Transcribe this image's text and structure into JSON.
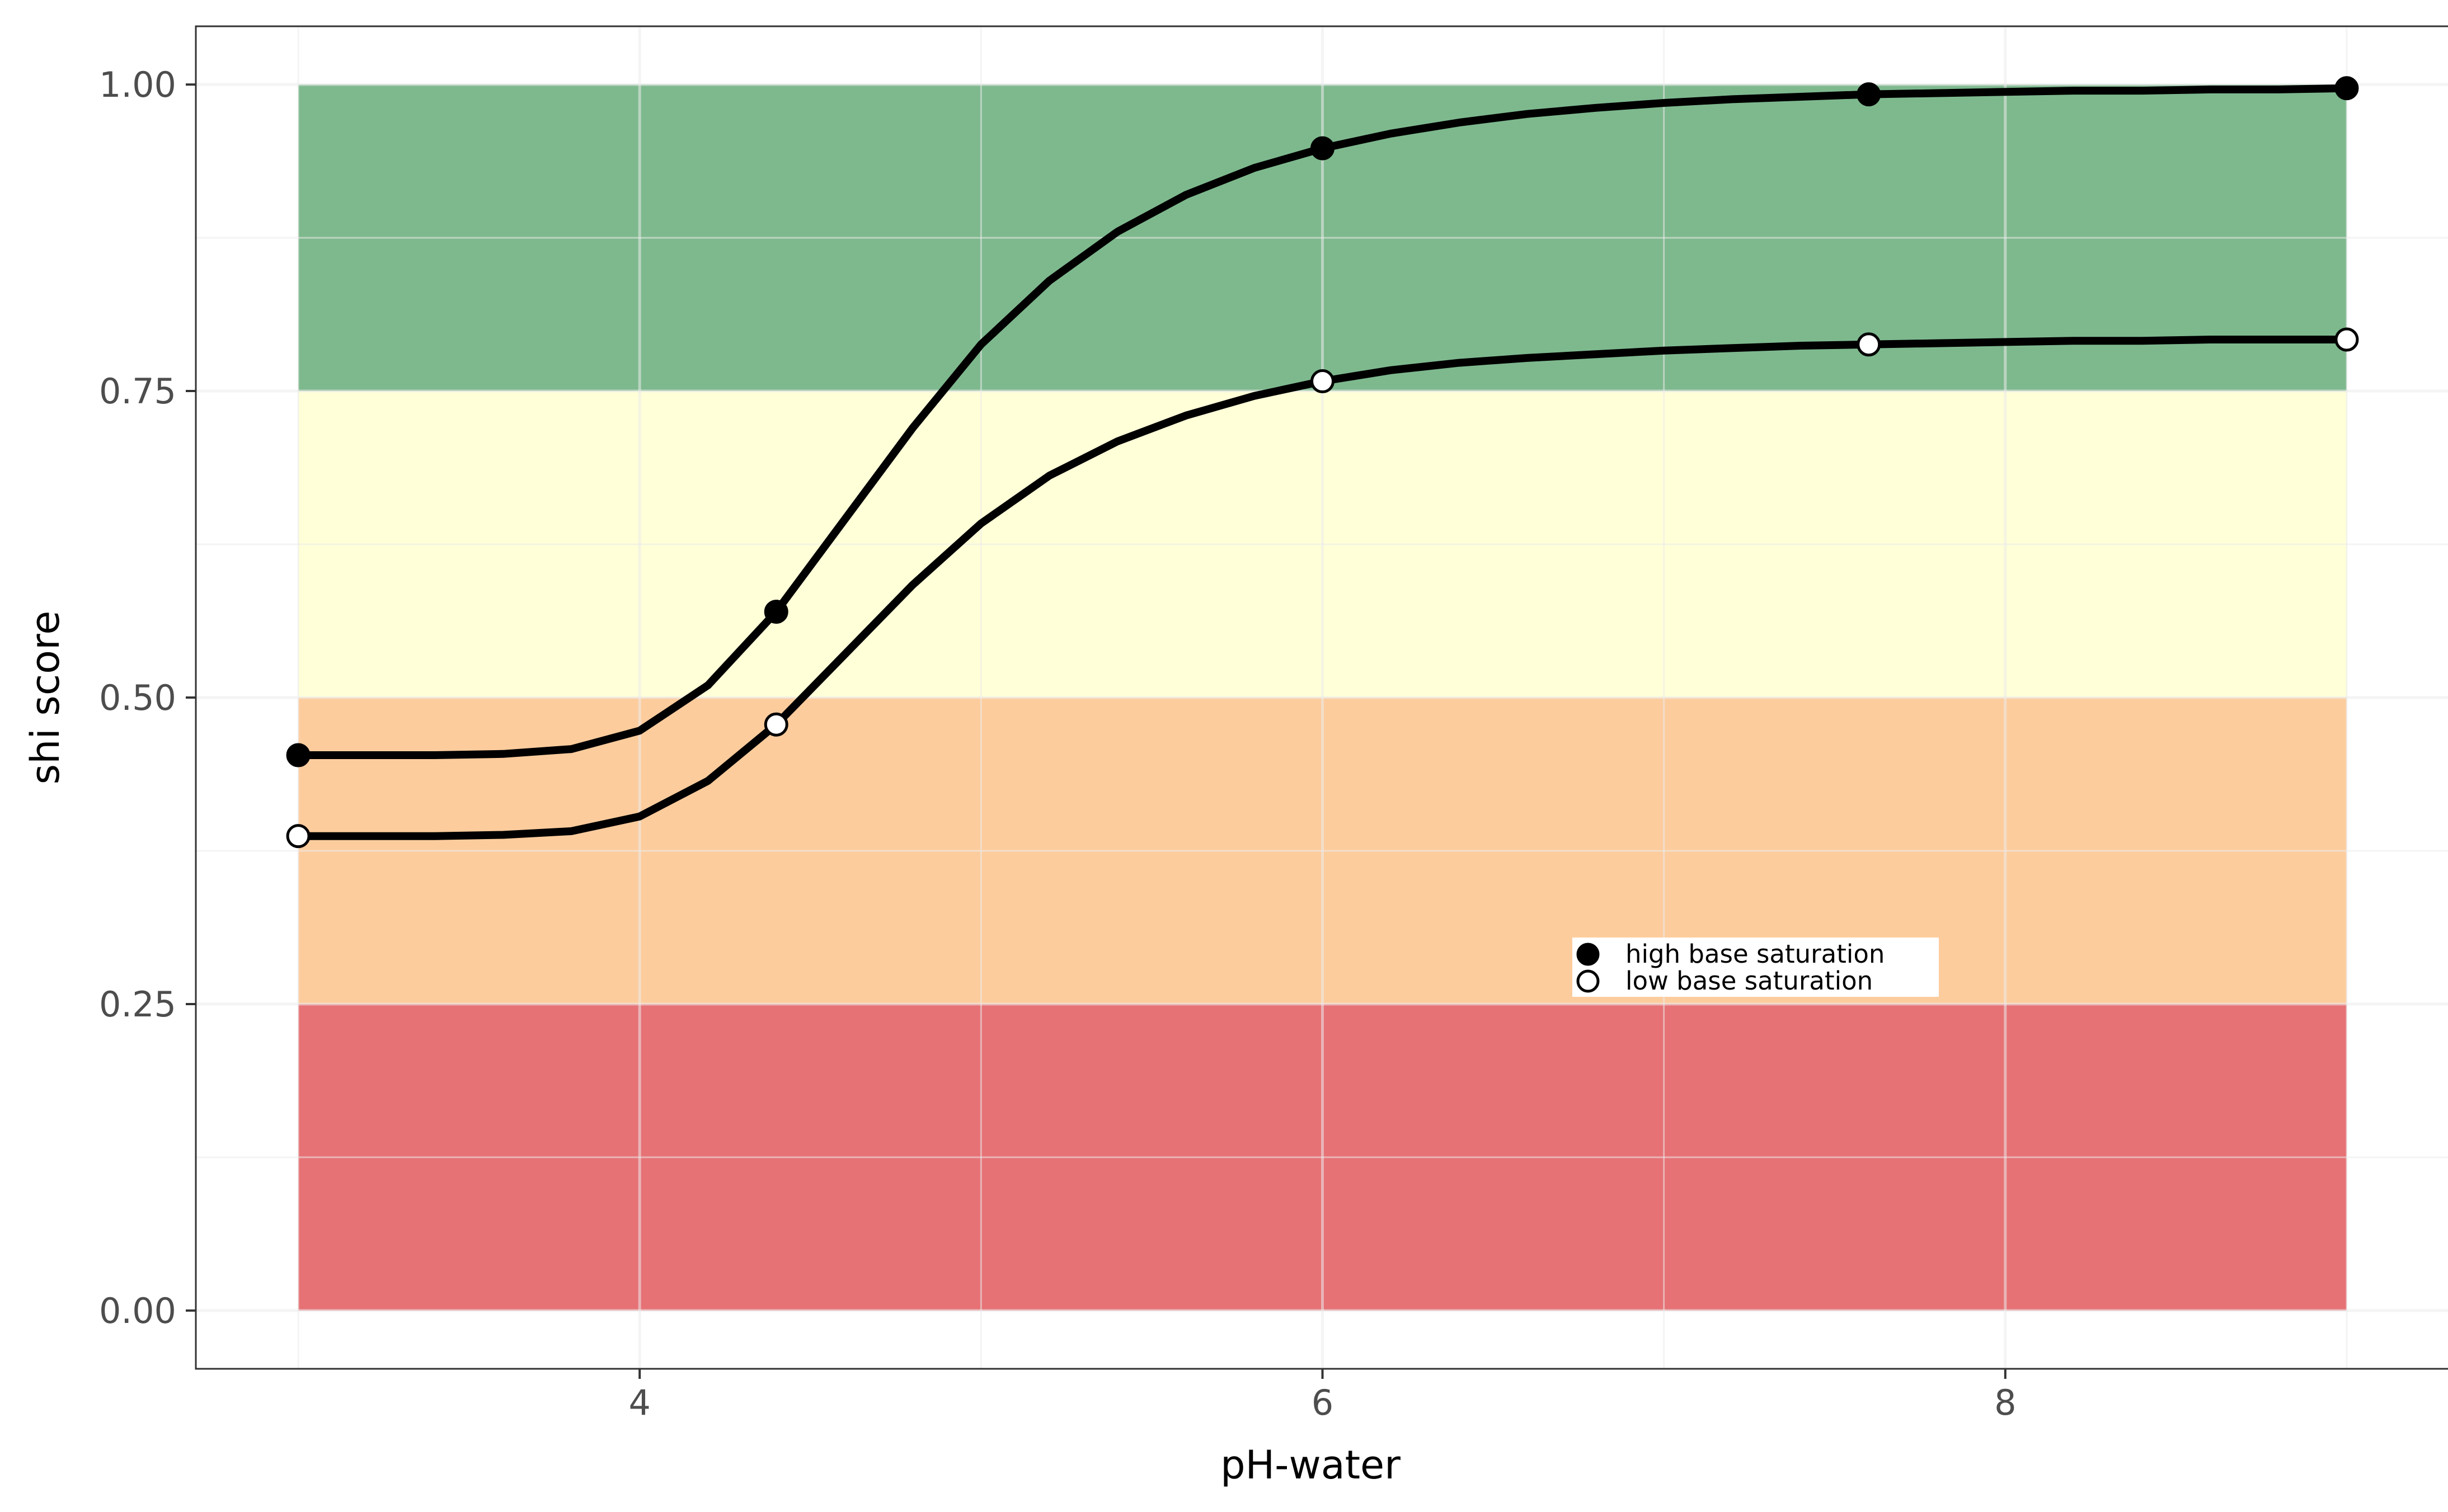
{
  "chart_data": {
    "type": "line",
    "xlabel": "pH-water",
    "ylabel": "shi score",
    "xlim": [
      2.7,
      9.3
    ],
    "ylim": [
      -0.0475,
      1.0475
    ],
    "x_ticks": [
      4,
      6,
      8
    ],
    "x_tick_labels": [
      "4",
      "6",
      "8"
    ],
    "x_minor": [
      3,
      5,
      7,
      9
    ],
    "y_ticks": [
      0,
      0.25,
      0.5,
      0.75,
      1.0
    ],
    "y_tick_labels": [
      "0.00",
      "0.25",
      "0.50",
      "0.75",
      "1.00"
    ],
    "y_minor": [
      0.125,
      0.375,
      0.625,
      0.875
    ],
    "grid": true,
    "bands": [
      {
        "ymin": 0.0,
        "ymax": 0.25,
        "color": "#e67275"
      },
      {
        "ymin": 0.25,
        "ymax": 0.5,
        "color": "#fdcc9d"
      },
      {
        "ymin": 0.5,
        "ymax": 0.75,
        "color": "#ffffd8"
      },
      {
        "ymin": 0.75,
        "ymax": 1.0,
        "color": "#7eb98e"
      }
    ],
    "band_x_range": [
      3.0,
      9.0
    ],
    "series": [
      {
        "name": "high base saturation",
        "marker": "filled",
        "line_x": [
          3.0,
          3.2,
          3.4,
          3.6,
          3.8,
          4.0,
          4.2,
          4.4,
          4.6,
          4.8,
          5.0,
          5.2,
          5.4,
          5.6,
          5.8,
          6.0,
          6.2,
          6.4,
          6.6,
          6.8,
          7.0,
          7.2,
          7.4,
          7.6,
          7.8,
          8.0,
          8.2,
          8.4,
          8.6,
          8.8,
          9.0
        ],
        "line_y": [
          0.453,
          0.453,
          0.453,
          0.454,
          0.458,
          0.473,
          0.51,
          0.57,
          0.645,
          0.72,
          0.788,
          0.84,
          0.88,
          0.91,
          0.932,
          0.948,
          0.96,
          0.969,
          0.976,
          0.981,
          0.985,
          0.988,
          0.99,
          0.992,
          0.993,
          0.994,
          0.995,
          0.995,
          0.996,
          0.996,
          0.997
        ],
        "points_x": [
          3.0,
          4.4,
          6.0,
          7.6,
          9.0
        ],
        "points_y": [
          0.453,
          0.57,
          0.948,
          0.992,
          0.997
        ]
      },
      {
        "name": "low base saturation",
        "marker": "open",
        "line_x": [
          3.0,
          3.2,
          3.4,
          3.6,
          3.8,
          4.0,
          4.2,
          4.4,
          4.6,
          4.8,
          5.0,
          5.2,
          5.4,
          5.6,
          5.8,
          6.0,
          6.2,
          6.4,
          6.6,
          6.8,
          7.0,
          7.2,
          7.4,
          7.6,
          7.8,
          8.0,
          8.2,
          8.4,
          8.6,
          8.8,
          9.0
        ],
        "line_y": [
          0.387,
          0.387,
          0.387,
          0.388,
          0.391,
          0.403,
          0.432,
          0.478,
          0.535,
          0.592,
          0.642,
          0.681,
          0.709,
          0.73,
          0.746,
          0.758,
          0.767,
          0.773,
          0.777,
          0.78,
          0.783,
          0.785,
          0.787,
          0.788,
          0.789,
          0.79,
          0.791,
          0.791,
          0.792,
          0.792,
          0.792
        ],
        "points_x": [
          3.0,
          4.4,
          6.0,
          7.6,
          9.0
        ],
        "points_y": [
          0.387,
          0.478,
          0.758,
          0.788,
          0.792
        ]
      }
    ],
    "legend": {
      "placement": "inside-lower-middle-right",
      "items": [
        {
          "label": "high base saturation",
          "marker": "filled"
        },
        {
          "label": "low base saturation",
          "marker": "open"
        }
      ]
    }
  }
}
